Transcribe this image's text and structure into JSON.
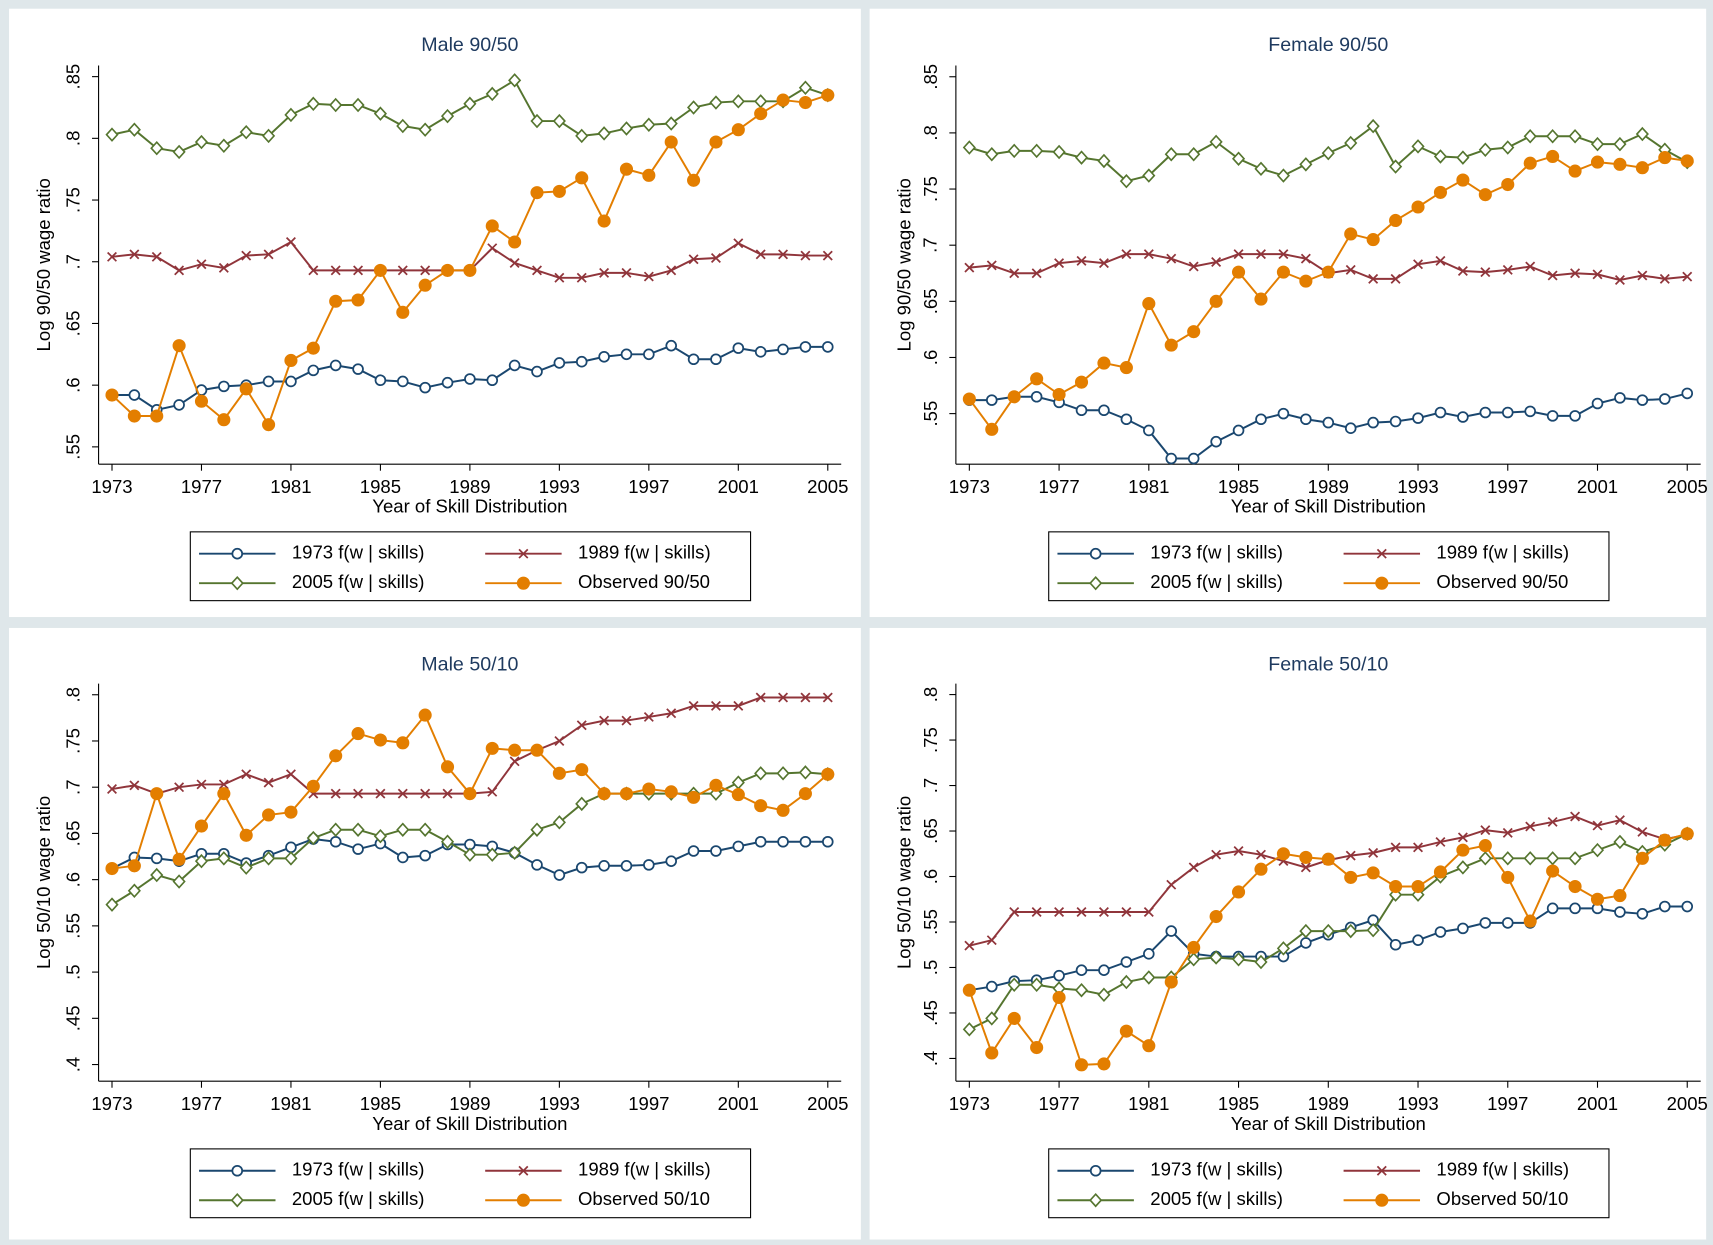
{
  "chart_data": [
    {
      "type": "line",
      "title": "Male 90/50",
      "xlabel": "Year of Skill Distribution",
      "ylabel": "Log 90/50 wage ratio",
      "x": [
        1973,
        1974,
        1975,
        1976,
        1977,
        1978,
        1979,
        1980,
        1981,
        1982,
        1983,
        1984,
        1985,
        1986,
        1987,
        1988,
        1989,
        1990,
        1991,
        1992,
        1993,
        1994,
        1995,
        1996,
        1997,
        1998,
        1999,
        2000,
        2001,
        2002,
        2003,
        2004,
        2005
      ],
      "xlim": [
        1972.4,
        2005.6
      ],
      "xticks": [
        1973,
        1977,
        1981,
        1985,
        1989,
        1993,
        1997,
        2001,
        2005
      ],
      "ylim": [
        0.536,
        0.859
      ],
      "yticks": [
        {
          "value": 0.55,
          "label": ".55"
        },
        {
          "value": 0.6,
          "label": ".6"
        },
        {
          "value": 0.65,
          "label": ".65"
        },
        {
          "value": 0.7,
          "label": ".7"
        },
        {
          "value": 0.75,
          "label": ".75"
        },
        {
          "value": 0.8,
          "label": ".8"
        },
        {
          "value": 0.85,
          "label": ".85"
        }
      ],
      "grid": false,
      "series": [
        {
          "name": "1973 f(w | skills)",
          "color": "#1a476f",
          "marker": "circle-hollow",
          "values": [
            0.592,
            0.592,
            0.58,
            0.584,
            0.596,
            0.599,
            0.6,
            0.603,
            0.603,
            0.612,
            0.616,
            0.613,
            0.604,
            0.603,
            0.598,
            0.602,
            0.605,
            0.604,
            0.616,
            0.611,
            0.618,
            0.619,
            0.623,
            0.625,
            0.625,
            0.632,
            0.621,
            0.621,
            0.63,
            0.627,
            0.629,
            0.631,
            0.631
          ]
        },
        {
          "name": "1989 f(w | skills)",
          "color": "#90353b",
          "marker": "x",
          "values": [
            0.704,
            0.706,
            0.704,
            0.693,
            0.698,
            0.695,
            0.705,
            0.706,
            0.716,
            0.693,
            0.693,
            0.693,
            0.693,
            0.693,
            0.693,
            0.693,
            0.693,
            0.711,
            0.699,
            0.693,
            0.687,
            0.687,
            0.691,
            0.691,
            0.688,
            0.693,
            0.702,
            0.703,
            0.715,
            0.706,
            0.706,
            0.705,
            0.705
          ]
        },
        {
          "name": "2005 f(w | skills)",
          "color": "#55752f",
          "marker": "diamond-hollow",
          "values": [
            0.803,
            0.807,
            0.792,
            0.789,
            0.797,
            0.794,
            0.805,
            0.802,
            0.819,
            0.828,
            0.827,
            0.827,
            0.82,
            0.81,
            0.807,
            0.818,
            0.828,
            0.836,
            0.847,
            0.814,
            0.814,
            0.802,
            0.804,
            0.808,
            0.811,
            0.812,
            0.825,
            0.829,
            0.83,
            0.83,
            0.83,
            0.841,
            0.835
          ]
        },
        {
          "name": "Observed 90/50",
          "color": "#e37e00",
          "marker": "circle-filled",
          "values": [
            0.592,
            0.575,
            0.575,
            0.632,
            0.587,
            0.572,
            0.597,
            0.568,
            0.62,
            0.63,
            0.668,
            0.669,
            0.693,
            0.659,
            0.681,
            0.693,
            0.693,
            0.729,
            0.716,
            0.756,
            0.757,
            0.768,
            0.733,
            0.775,
            0.77,
            0.797,
            0.766,
            0.797,
            0.807,
            0.82,
            0.831,
            0.829,
            0.835
          ]
        }
      ]
    },
    {
      "type": "line",
      "title": "Female 90/50",
      "xlabel": "Year of Skill Distribution",
      "ylabel": "Log 90/50 wage ratio",
      "x": [
        1973,
        1974,
        1975,
        1976,
        1977,
        1978,
        1979,
        1980,
        1981,
        1982,
        1983,
        1984,
        1985,
        1986,
        1987,
        1988,
        1989,
        1990,
        1991,
        1992,
        1993,
        1994,
        1995,
        1996,
        1997,
        1998,
        1999,
        2000,
        2001,
        2002,
        2003,
        2004,
        2005
      ],
      "xlim": [
        1972.4,
        2005.6
      ],
      "xticks": [
        1973,
        1977,
        1981,
        1985,
        1989,
        1993,
        1997,
        2001,
        2005
      ],
      "ylim": [
        0.505,
        0.86
      ],
      "yticks": [
        {
          "value": 0.55,
          "label": ".55"
        },
        {
          "value": 0.6,
          "label": ".6"
        },
        {
          "value": 0.65,
          "label": ".65"
        },
        {
          "value": 0.7,
          "label": ".7"
        },
        {
          "value": 0.75,
          "label": ".75"
        },
        {
          "value": 0.8,
          "label": ".8"
        },
        {
          "value": 0.85,
          "label": ".85"
        }
      ],
      "grid": false,
      "series": [
        {
          "name": "1973 f(w | skills)",
          "color": "#1a476f",
          "marker": "circle-hollow",
          "values": [
            0.562,
            0.562,
            0.565,
            0.565,
            0.56,
            0.553,
            0.553,
            0.545,
            0.535,
            0.51,
            0.51,
            0.525,
            0.535,
            0.545,
            0.55,
            0.545,
            0.542,
            0.537,
            0.542,
            0.543,
            0.546,
            0.551,
            0.547,
            0.551,
            0.551,
            0.552,
            0.548,
            0.548,
            0.559,
            0.564,
            0.562,
            0.563,
            0.568
          ]
        },
        {
          "name": "1989 f(w | skills)",
          "color": "#90353b",
          "marker": "x",
          "values": [
            0.68,
            0.682,
            0.675,
            0.675,
            0.684,
            0.686,
            0.684,
            0.692,
            0.692,
            0.688,
            0.681,
            0.685,
            0.692,
            0.692,
            0.692,
            0.688,
            0.675,
            0.678,
            0.67,
            0.67,
            0.683,
            0.686,
            0.677,
            0.676,
            0.678,
            0.681,
            0.673,
            0.675,
            0.674,
            0.669,
            0.673,
            0.67,
            0.672
          ]
        },
        {
          "name": "2005 f(w | skills)",
          "color": "#55752f",
          "marker": "diamond-hollow",
          "values": [
            0.787,
            0.781,
            0.784,
            0.784,
            0.783,
            0.778,
            0.775,
            0.757,
            0.762,
            0.781,
            0.781,
            0.792,
            0.777,
            0.768,
            0.762,
            0.772,
            0.782,
            0.791,
            0.806,
            0.77,
            0.788,
            0.779,
            0.778,
            0.785,
            0.787,
            0.797,
            0.797,
            0.797,
            0.79,
            0.79,
            0.799,
            0.785,
            0.774
          ]
        },
        {
          "name": "Observed 90/50",
          "color": "#e37e00",
          "marker": "circle-filled",
          "values": [
            0.563,
            0.536,
            0.565,
            0.581,
            0.567,
            0.578,
            0.595,
            0.591,
            0.648,
            0.611,
            0.623,
            0.65,
            0.676,
            0.652,
            0.676,
            0.668,
            0.676,
            0.71,
            0.705,
            0.722,
            0.734,
            0.747,
            0.758,
            0.745,
            0.754,
            0.773,
            0.779,
            0.766,
            0.774,
            0.772,
            0.769,
            0.778,
            0.775
          ]
        }
      ]
    },
    {
      "type": "line",
      "title": "Male 50/10",
      "xlabel": "Year of Skill Distribution",
      "ylabel": "Log 50/10 wage ratio",
      "x": [
        1973,
        1974,
        1975,
        1976,
        1977,
        1978,
        1979,
        1980,
        1981,
        1982,
        1983,
        1984,
        1985,
        1986,
        1987,
        1988,
        1989,
        1990,
        1991,
        1992,
        1993,
        1994,
        1995,
        1996,
        1997,
        1998,
        1999,
        2000,
        2001,
        2002,
        2003,
        2004,
        2005
      ],
      "xlim": [
        1972.4,
        2005.6
      ],
      "xticks": [
        1973,
        1977,
        1981,
        1985,
        1989,
        1993,
        1997,
        2001,
        2005
      ],
      "ylim": [
        0.382,
        0.812
      ],
      "yticks": [
        {
          "value": 0.4,
          "label": ".4"
        },
        {
          "value": 0.45,
          "label": ".45"
        },
        {
          "value": 0.5,
          "label": ".5"
        },
        {
          "value": 0.55,
          "label": ".55"
        },
        {
          "value": 0.6,
          "label": ".6"
        },
        {
          "value": 0.65,
          "label": ".65"
        },
        {
          "value": 0.7,
          "label": ".7"
        },
        {
          "value": 0.75,
          "label": ".75"
        },
        {
          "value": 0.8,
          "label": ".8"
        }
      ],
      "grid": false,
      "series": [
        {
          "name": "1973 f(w | skills)",
          "color": "#1a476f",
          "marker": "circle-hollow",
          "values": [
            0.612,
            0.624,
            0.623,
            0.62,
            0.628,
            0.628,
            0.618,
            0.626,
            0.635,
            0.644,
            0.641,
            0.633,
            0.639,
            0.624,
            0.626,
            0.638,
            0.638,
            0.636,
            0.629,
            0.616,
            0.605,
            0.613,
            0.615,
            0.615,
            0.616,
            0.62,
            0.631,
            0.631,
            0.636,
            0.641,
            0.641,
            0.641,
            0.641
          ]
        },
        {
          "name": "1989 f(w | skills)",
          "color": "#90353b",
          "marker": "x",
          "values": [
            0.698,
            0.702,
            0.693,
            0.7,
            0.703,
            0.703,
            0.714,
            0.705,
            0.714,
            0.693,
            0.693,
            0.693,
            0.693,
            0.693,
            0.693,
            0.693,
            0.693,
            0.695,
            0.728,
            0.74,
            0.75,
            0.767,
            0.772,
            0.772,
            0.776,
            0.78,
            0.788,
            0.788,
            0.788,
            0.797,
            0.797,
            0.797,
            0.797
          ]
        },
        {
          "name": "2005 f(w | skills)",
          "color": "#55752f",
          "marker": "diamond-hollow",
          "values": [
            0.573,
            0.588,
            0.605,
            0.598,
            0.62,
            0.623,
            0.613,
            0.623,
            0.623,
            0.645,
            0.654,
            0.654,
            0.647,
            0.654,
            0.654,
            0.641,
            0.627,
            0.627,
            0.629,
            0.654,
            0.662,
            0.682,
            0.693,
            0.693,
            0.693,
            0.693,
            0.693,
            0.693,
            0.705,
            0.715,
            0.715,
            0.716,
            0.714
          ]
        },
        {
          "name": "Observed 50/10",
          "color": "#e37e00",
          "marker": "circle-filled",
          "values": [
            0.612,
            0.615,
            0.693,
            0.622,
            0.658,
            0.693,
            0.648,
            0.67,
            0.673,
            0.701,
            0.734,
            0.758,
            0.751,
            0.748,
            0.778,
            0.722,
            0.693,
            0.742,
            0.74,
            0.74,
            0.715,
            0.719,
            0.693,
            0.693,
            0.698,
            0.695,
            0.689,
            0.702,
            0.692,
            0.68,
            0.675,
            0.693,
            0.714
          ]
        }
      ]
    },
    {
      "type": "line",
      "title": "Female 50/10",
      "xlabel": "Year of Skill Distribution",
      "ylabel": "Log 50/10 wage ratio",
      "x": [
        1973,
        1974,
        1975,
        1976,
        1977,
        1978,
        1979,
        1980,
        1981,
        1982,
        1983,
        1984,
        1985,
        1986,
        1987,
        1988,
        1989,
        1990,
        1991,
        1992,
        1993,
        1994,
        1995,
        1996,
        1997,
        1998,
        1999,
        2000,
        2001,
        2002,
        2003,
        2004,
        2005
      ],
      "xlim": [
        1972.4,
        2005.6
      ],
      "xticks": [
        1973,
        1977,
        1981,
        1985,
        1989,
        1993,
        1997,
        2001,
        2005
      ],
      "ylim": [
        0.375,
        0.812
      ],
      "yticks": [
        {
          "value": 0.4,
          "label": ".4"
        },
        {
          "value": 0.45,
          "label": ".45"
        },
        {
          "value": 0.5,
          "label": ".5"
        },
        {
          "value": 0.55,
          "label": ".55"
        },
        {
          "value": 0.6,
          "label": ".6"
        },
        {
          "value": 0.65,
          "label": ".65"
        },
        {
          "value": 0.7,
          "label": ".7"
        },
        {
          "value": 0.75,
          "label": ".75"
        },
        {
          "value": 0.8,
          "label": ".8"
        }
      ],
      "grid": false,
      "series": [
        {
          "name": "1973 f(w | skills)",
          "color": "#1a476f",
          "marker": "circle-hollow",
          "values": [
            0.475,
            0.479,
            0.485,
            0.486,
            0.491,
            0.497,
            0.497,
            0.506,
            0.515,
            0.54,
            0.515,
            0.512,
            0.512,
            0.512,
            0.512,
            0.527,
            0.536,
            0.544,
            0.552,
            0.525,
            0.53,
            0.539,
            0.543,
            0.549,
            0.549,
            0.549,
            0.565,
            0.565,
            0.565,
            0.561,
            0.559,
            0.567,
            0.567
          ]
        },
        {
          "name": "1989 f(w | skills)",
          "color": "#90353b",
          "marker": "x",
          "values": [
            0.524,
            0.53,
            0.561,
            0.561,
            0.561,
            0.561,
            0.561,
            0.561,
            0.561,
            0.591,
            0.61,
            0.624,
            0.628,
            0.624,
            0.617,
            0.61,
            0.618,
            0.623,
            0.626,
            0.632,
            0.632,
            0.638,
            0.643,
            0.651,
            0.648,
            0.655,
            0.66,
            0.666,
            0.656,
            0.662,
            0.649,
            0.641,
            0.646
          ]
        },
        {
          "name": "2005 f(w | skills)",
          "color": "#55752f",
          "marker": "diamond-hollow",
          "values": [
            0.432,
            0.444,
            0.481,
            0.481,
            0.477,
            0.475,
            0.47,
            0.484,
            0.489,
            0.489,
            0.509,
            0.511,
            0.509,
            0.506,
            0.521,
            0.54,
            0.54,
            0.54,
            0.541,
            0.58,
            0.58,
            0.6,
            0.61,
            0.62,
            0.62,
            0.62,
            0.62,
            0.62,
            0.629,
            0.638,
            0.627,
            0.635,
            0.647
          ]
        },
        {
          "name": "Observed 50/10",
          "color": "#e37e00",
          "marker": "circle-filled",
          "values": [
            0.475,
            0.406,
            0.444,
            0.412,
            0.467,
            0.393,
            0.394,
            0.43,
            0.414,
            0.484,
            0.522,
            0.556,
            0.583,
            0.608,
            0.625,
            0.621,
            0.619,
            0.599,
            0.604,
            0.589,
            0.589,
            0.605,
            0.629,
            0.634,
            0.599,
            0.551,
            0.606,
            0.589,
            0.575,
            0.579,
            0.62,
            0.64,
            0.647
          ]
        }
      ]
    }
  ]
}
